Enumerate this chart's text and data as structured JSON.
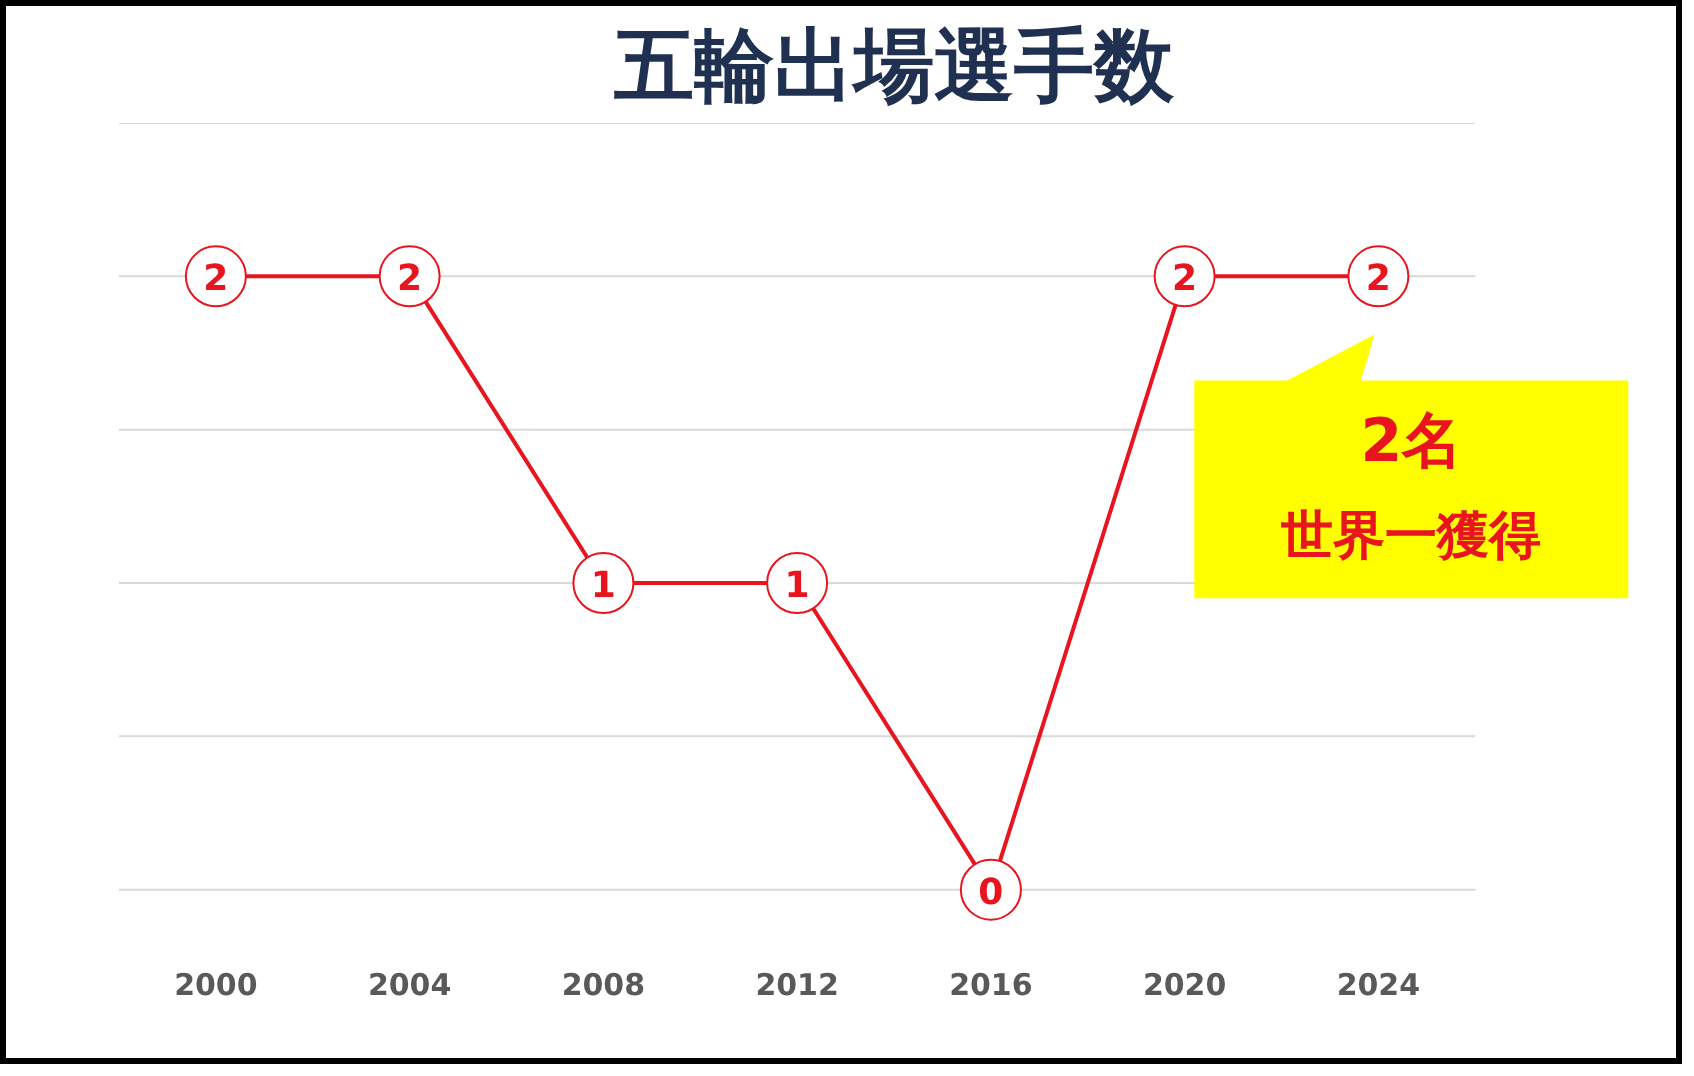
{
  "chart_data": {
    "type": "line",
    "title": "五輪出場選手数",
    "categories": [
      "2000",
      "2004",
      "2008",
      "2012",
      "2016",
      "2020",
      "2024"
    ],
    "series": [
      {
        "color": "#e8141e",
        "values": [
          2,
          2,
          1,
          1,
          0,
          2,
          2
        ]
      }
    ],
    "yticks": [
      {
        "value": 0,
        "label": null
      },
      {
        "value": 0.5,
        "label": null
      },
      {
        "value": 1,
        "label": null
      },
      {
        "value": 1.5,
        "label": null
      },
      {
        "value": 2,
        "label": null
      },
      {
        "value": 2.5,
        "label": null
      }
    ],
    "tick_labels": "x",
    "grid": "y",
    "marker": "circle",
    "line_style": "solid",
    "data_labels": true,
    "annotations": [
      {
        "text": "2名",
        "x": "2024",
        "y": 2
      },
      "世界一獲得"
    ]
  }
}
